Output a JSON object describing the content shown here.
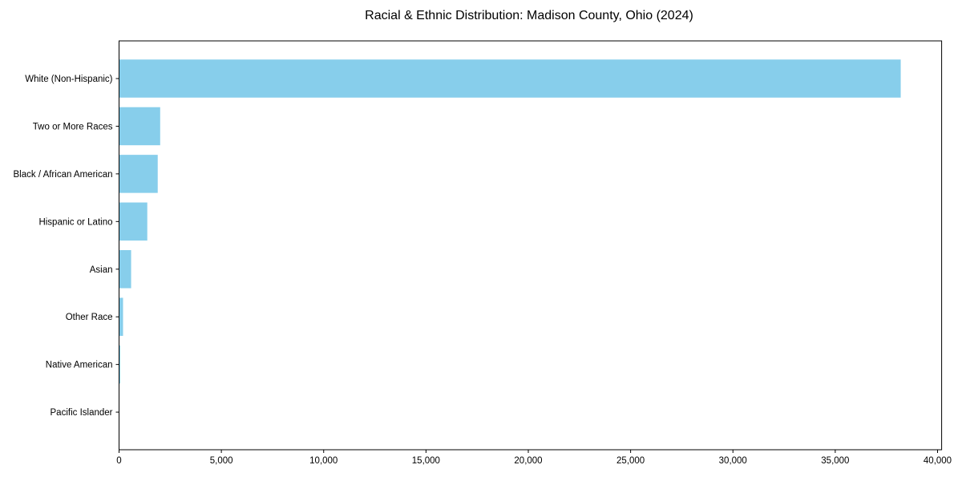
{
  "chart_data": {
    "type": "bar",
    "orientation": "horizontal",
    "title": "Racial & Ethnic Distribution: Madison County, Ohio (2024)",
    "categories": [
      "White (Non-Hispanic)",
      "Two or More Races",
      "Black / African American",
      "Hispanic or Latino",
      "Asian",
      "Other Race",
      "Native American",
      "Pacific Islander"
    ],
    "values": [
      38200,
      2010,
      1890,
      1380,
      590,
      195,
      60,
      12
    ],
    "xlabel": "",
    "ylabel": "",
    "xlim": [
      0,
      40200
    ],
    "xticks": [
      0,
      5000,
      10000,
      15000,
      20000,
      25000,
      30000,
      35000,
      40000
    ],
    "xtick_labels": [
      "0",
      "5,000",
      "10,000",
      "15,000",
      "20,000",
      "25,000",
      "30,000",
      "35,000",
      "40,000"
    ],
    "grid": false,
    "legend": null,
    "bar_color": "#87CEEB",
    "axis_color": "#000000",
    "text_color": "#000000",
    "background": "#FFFFFF"
  }
}
